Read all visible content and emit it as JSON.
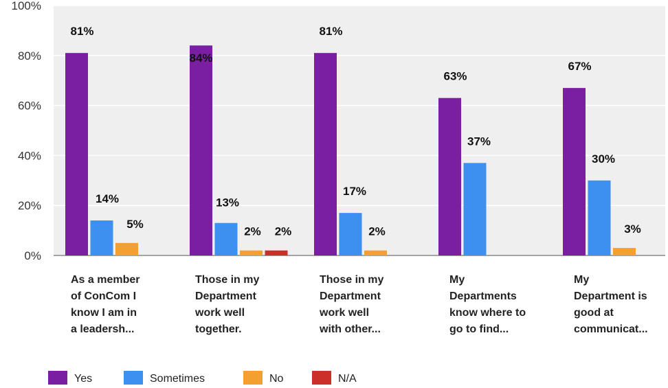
{
  "chart_data": {
    "type": "bar",
    "categories": [
      [
        "As a member",
        "of ConCom I",
        "know I am in",
        "a leadersh..."
      ],
      [
        "Those in my",
        "Department",
        "work well",
        "together."
      ],
      [
        "Those in my",
        "Department",
        "work well",
        "with other..."
      ],
      [
        "My",
        "Departments",
        "know where to",
        "go to find..."
      ],
      [
        "My",
        "Department is",
        "good at",
        "communicat..."
      ]
    ],
    "series": [
      {
        "name": "Yes",
        "color": "#7b1fa2",
        "values": [
          81,
          84,
          81,
          63,
          67
        ]
      },
      {
        "name": "Sometimes",
        "color": "#3d8ff0",
        "values": [
          14,
          13,
          17,
          37,
          30
        ]
      },
      {
        "name": "No",
        "color": "#f4a030",
        "values": [
          5,
          2,
          2,
          0,
          3
        ]
      },
      {
        "name": "N/A",
        "color": "#cc2f2a",
        "values": [
          0,
          2,
          0,
          0,
          0
        ]
      }
    ],
    "data_labels": [
      [
        "81%",
        "14%",
        "5%",
        null
      ],
      [
        "84%",
        "13%",
        "2%",
        "2%"
      ],
      [
        "81%",
        "17%",
        "2%",
        null
      ],
      [
        "63%",
        "37%",
        null,
        null
      ],
      [
        "67%",
        "30%",
        "3%",
        null
      ]
    ],
    "yticks": [
      "0%",
      "20%",
      "40%",
      "60%",
      "80%",
      "100%"
    ],
    "ylim": [
      0,
      100
    ],
    "grid": true,
    "legend_position": "bottom-left",
    "title": "",
    "xlabel": "",
    "ylabel": ""
  }
}
